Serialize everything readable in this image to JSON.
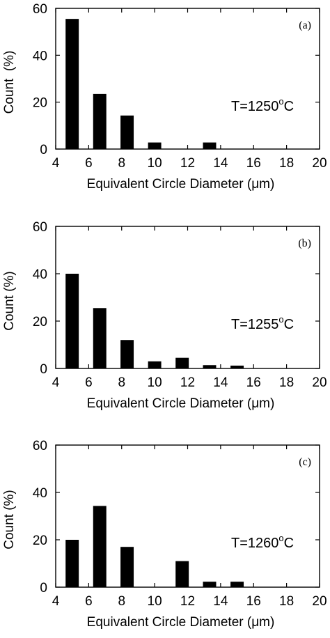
{
  "chart_data": [
    {
      "type": "bar",
      "panel_label": "(a)",
      "annotation": {
        "prefix": "T=1250",
        "superscript": "o",
        "suffix": "C"
      },
      "xlabel": "Equivalent Circle Diameter (μm)",
      "ylabel": "Count  (%)",
      "xlim": [
        4,
        20
      ],
      "ylim": [
        0,
        60
      ],
      "xticks": [
        4,
        6,
        8,
        10,
        12,
        14,
        16,
        18,
        20
      ],
      "yticks": [
        0,
        20,
        40,
        60
      ],
      "bar_width": 0.8,
      "x": [
        5,
        6.67,
        8.33,
        10,
        11.67,
        13.33,
        15,
        16.67,
        18.33
      ],
      "values": [
        55.5,
        23.5,
        14.3,
        2.8,
        0,
        2.8,
        0,
        0,
        0
      ]
    },
    {
      "type": "bar",
      "panel_label": "(b)",
      "annotation": {
        "prefix": "T=1255",
        "superscript": "o",
        "suffix": "C"
      },
      "xlabel": "Equivalent Circle Diameter (μm)",
      "ylabel": "Count (%)",
      "xlim": [
        4,
        20
      ],
      "ylim": [
        0,
        60
      ],
      "xticks": [
        4,
        6,
        8,
        10,
        12,
        14,
        16,
        18,
        20
      ],
      "yticks": [
        0,
        20,
        40,
        60
      ],
      "bar_width": 0.8,
      "x": [
        5,
        6.67,
        8.33,
        10,
        11.67,
        13.33,
        15,
        16.67,
        18.33
      ],
      "values": [
        40,
        25.5,
        12,
        3,
        4.5,
        1.4,
        1.2,
        0,
        0
      ]
    },
    {
      "type": "bar",
      "panel_label": "(c)",
      "annotation": {
        "prefix": "T=1260",
        "superscript": "o",
        "suffix": "C"
      },
      "xlabel": "Equivalent Circle Diameter (μm)",
      "ylabel": "Count (%)",
      "xlim": [
        4,
        20
      ],
      "ylim": [
        0,
        60
      ],
      "xticks": [
        4,
        6,
        8,
        10,
        12,
        14,
        16,
        18,
        20
      ],
      "yticks": [
        0,
        20,
        40,
        60
      ],
      "bar_width": 0.8,
      "x": [
        5,
        6.67,
        8.33,
        10,
        11.67,
        13.33,
        15,
        16.67,
        18.33
      ],
      "values": [
        20,
        34.3,
        17,
        0,
        11,
        2.3,
        2.3,
        0,
        0
      ]
    }
  ]
}
